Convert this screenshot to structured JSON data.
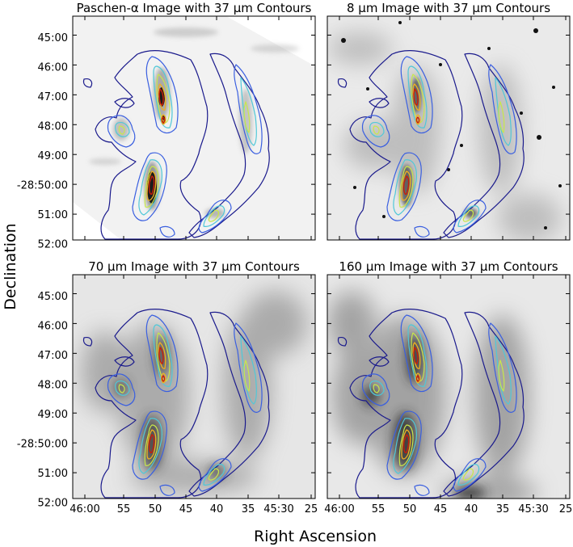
{
  "figure": {
    "ylabel": "Declination",
    "xlabel": "Right Ascension",
    "panels": [
      {
        "title": "Paschen-α Image with 37 μm Contours",
        "background": "pa"
      },
      {
        "title": "8 μm Image with 37 μm Contours",
        "background": "ir8"
      },
      {
        "title": "70 μm Image with 37 μm Contours",
        "background": "ir70"
      },
      {
        "title": "160 μm Image with 37 μm Contours",
        "background": "ir160"
      }
    ],
    "dec_ticks": [
      "45:00",
      "46:00",
      "47:00",
      "48:00",
      "49:00",
      "-28:50:00",
      "51:00",
      "52:00"
    ],
    "ra_ticks": [
      "46:00",
      "55",
      "50",
      "45",
      "40",
      "35",
      "45:30",
      "25"
    ],
    "contour_colors": [
      "#1a1a8c",
      "#3a5fe0",
      "#4fc8d8",
      "#c8e84a",
      "#f0b020",
      "#c81e0a"
    ]
  }
}
